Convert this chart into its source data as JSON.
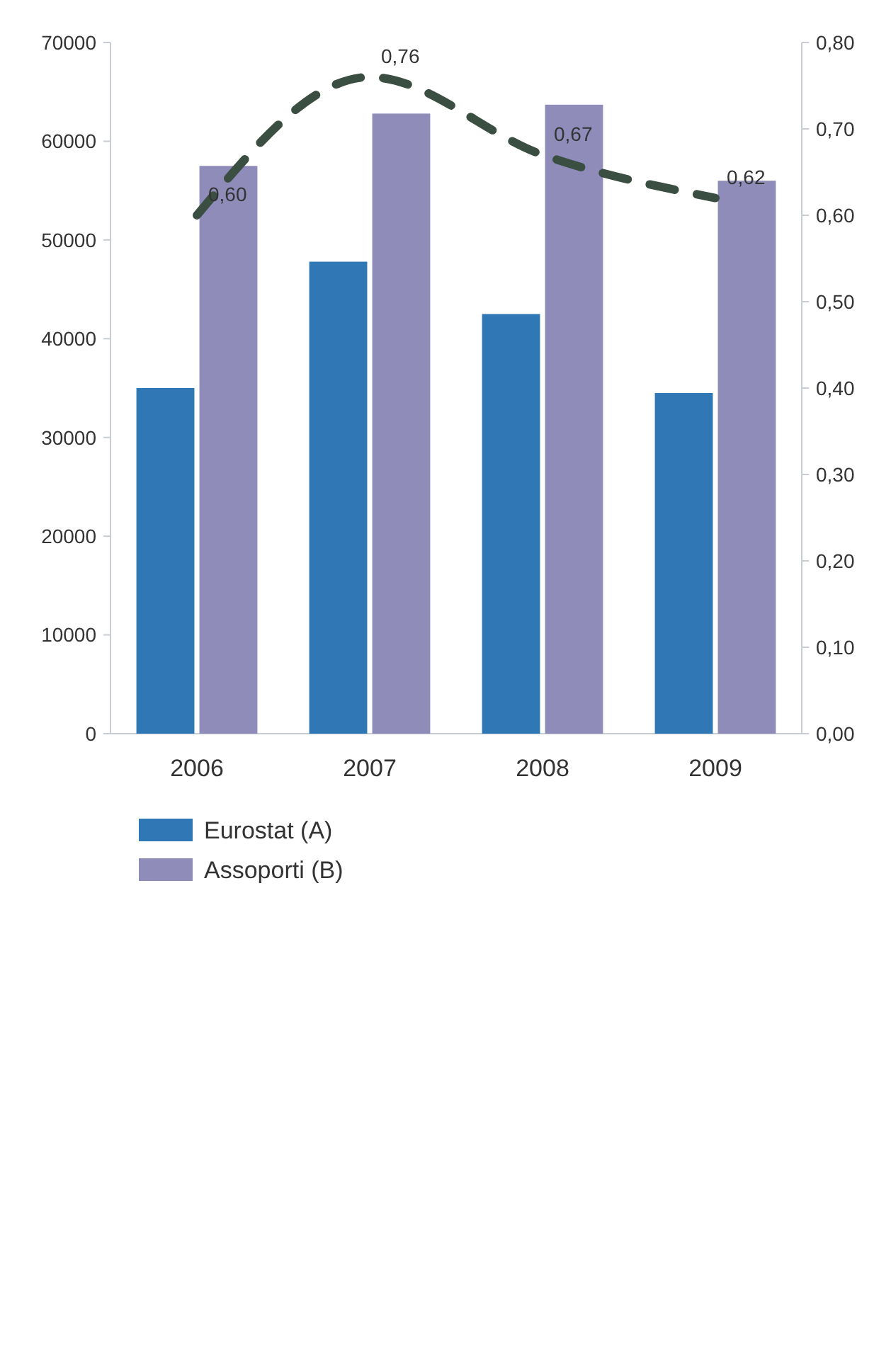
{
  "chart_data": {
    "type": "bar",
    "categories": [
      "2006",
      "2007",
      "2008",
      "2009"
    ],
    "series": [
      {
        "name": "Eurostat (A)",
        "color": "#2f78b5",
        "values": [
          35000,
          47800,
          42500,
          34500
        ]
      },
      {
        "name": "Assoporti (B)",
        "color": "#8f8cb9",
        "values": [
          57500,
          62800,
          63700,
          56000
        ]
      },
      {
        "type": "line",
        "axis": "y2",
        "color": "#3b4e42",
        "values": [
          0.6,
          0.76,
          0.67,
          0.62
        ],
        "value_labels": [
          "0,60",
          "0,76",
          "0,67",
          "0,62"
        ]
      }
    ],
    "ylim": [
      0,
      70000
    ],
    "yticks": [
      0,
      10000,
      20000,
      30000,
      40000,
      50000,
      60000,
      70000
    ],
    "y2lim": [
      0,
      0.8
    ],
    "y2ticks": [
      {
        "value": 0,
        "label": "0,00"
      },
      {
        "value": 0.1,
        "label": "0,10"
      },
      {
        "value": 0.2,
        "label": "0,20"
      },
      {
        "value": 0.3,
        "label": "0,30"
      },
      {
        "value": 0.4,
        "label": "0,40"
      },
      {
        "value": 0.5,
        "label": "0,50"
      },
      {
        "value": 0.6,
        "label": "0,60"
      },
      {
        "value": 0.7,
        "label": "0,70"
      },
      {
        "value": 0.8,
        "label": "0,80"
      }
    ],
    "grid": false,
    "legend": "bottom left",
    "marker": "none",
    "line_style": "dashed"
  }
}
